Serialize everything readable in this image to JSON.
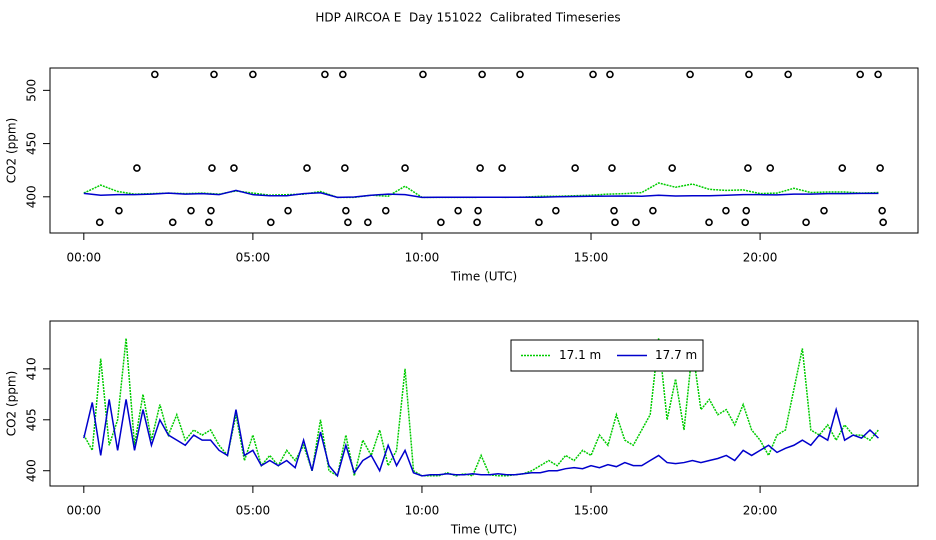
{
  "title": "HDP AIRCOA E  Day 151022  Calibrated Timeseries",
  "chart_data": [
    {
      "type": "line",
      "xlabel": "Time (UTC)",
      "ylabel": "CO2 (ppm)",
      "xlim": [
        -1,
        24.67
      ],
      "ylim": [
        366,
        521
      ],
      "xticks": [
        {
          "value": 0,
          "label": "00:00"
        },
        {
          "value": 5,
          "label": "05:00"
        },
        {
          "value": 10,
          "label": "10:00"
        },
        {
          "value": 15,
          "label": "15:00"
        },
        {
          "value": 20,
          "label": "20:00"
        }
      ],
      "yticks": [
        400,
        450,
        500
      ],
      "x": [
        0,
        0.5,
        1,
        1.5,
        2,
        2.5,
        3,
        3.5,
        4,
        4.5,
        5,
        5.5,
        6,
        6.5,
        7,
        7.5,
        8,
        8.5,
        9,
        9.5,
        10,
        10.5,
        11,
        11.5,
        12,
        12.5,
        13,
        13.5,
        14,
        14.5,
        15,
        15.5,
        16,
        16.5,
        17,
        17.5,
        18,
        18.5,
        19,
        19.5,
        20,
        20.5,
        21,
        21.5,
        22,
        22.5,
        23,
        23.5
      ],
      "series": [
        {
          "color": "#00cc00",
          "dash": true,
          "values": [
            403.5,
            411.0,
            405.0,
            402.5,
            403.0,
            403.5,
            403.0,
            403.5,
            402.5,
            405.5,
            403.5,
            401.5,
            402.0,
            402.5,
            405.0,
            399.5,
            399.5,
            401.5,
            400.5,
            410.0,
            399.5,
            399.5,
            399.5,
            399.5,
            399.6,
            399.5,
            399.7,
            400.5,
            400.5,
            401.0,
            401.5,
            402.5,
            403.0,
            404.0,
            413.0,
            409.0,
            412.0,
            407.0,
            406.0,
            406.5,
            403.0,
            403.5,
            408.0,
            404.0,
            404.5,
            404.5,
            403.5,
            404.0
          ]
        },
        {
          "color": "#0000cc",
          "values": [
            403.2,
            401.5,
            402.0,
            402.0,
            402.5,
            403.5,
            402.5,
            403.0,
            402.0,
            406.0,
            402.0,
            401.0,
            401.0,
            403.0,
            403.8,
            399.5,
            399.8,
            401.5,
            402.5,
            402.0,
            399.5,
            399.6,
            399.6,
            399.6,
            399.6,
            399.6,
            399.6,
            399.6,
            400.0,
            400.3,
            400.5,
            400.6,
            400.8,
            400.5,
            401.5,
            400.7,
            401.0,
            401.0,
            401.5,
            402.0,
            402.0,
            401.8,
            402.5,
            402.5,
            403.0,
            403.0,
            403.2,
            403.2
          ]
        },
        {
          "color": "#000000",
          "points": true,
          "x": [
            2.1,
            3.85,
            5.0,
            7.13,
            7.66,
            10.03,
            11.78,
            12.9,
            15.06,
            15.56,
            17.93,
            19.67,
            20.83,
            22.96,
            23.49,
            1.57,
            3.79,
            4.44,
            6.6,
            7.72,
            9.5,
            11.72,
            12.37,
            14.53,
            15.62,
            17.4,
            19.64,
            20.3,
            22.43,
            23.55,
            1.04,
            3.17,
            3.76,
            6.04,
            7.75,
            8.93,
            11.07,
            11.66,
            13.96,
            15.68,
            16.83,
            18.99,
            19.59,
            21.89,
            23.61,
            0.47,
            2.63,
            3.7,
            5.53,
            7.81,
            8.4,
            10.56,
            11.63,
            13.46,
            15.71,
            16.33,
            18.49,
            19.56,
            21.36,
            23.64
          ],
          "values": [
            515,
            515,
            515,
            515,
            515,
            515,
            515,
            515,
            515,
            515,
            515,
            515,
            515,
            515,
            515,
            427,
            427,
            427,
            427,
            427,
            427,
            427,
            427,
            427,
            427,
            427,
            427,
            427,
            427,
            427,
            387,
            387,
            387,
            387,
            387,
            387,
            387,
            387,
            387,
            387,
            387,
            387,
            387,
            387,
            387,
            376,
            376,
            376,
            376,
            376,
            376,
            376,
            376,
            376,
            376,
            376,
            376,
            376,
            376,
            376
          ]
        }
      ]
    },
    {
      "type": "line",
      "xlabel": "Time (UTC)",
      "ylabel": "CO2 (ppm)",
      "legend": "top",
      "xlim": [
        -1,
        24.67
      ],
      "ylim": [
        398.5,
        414.7
      ],
      "xticks": [
        {
          "value": 0,
          "label": "00:00"
        },
        {
          "value": 5,
          "label": "05:00"
        },
        {
          "value": 10,
          "label": "10:00"
        },
        {
          "value": 15,
          "label": "15:00"
        },
        {
          "value": 20,
          "label": "20:00"
        }
      ],
      "yticks": [
        400,
        405,
        410
      ],
      "x": [
        0,
        0.25,
        0.5,
        0.75,
        1,
        1.25,
        1.5,
        1.75,
        2,
        2.25,
        2.5,
        2.75,
        3,
        3.25,
        3.5,
        3.75,
        4,
        4.25,
        4.5,
        4.75,
        5,
        5.25,
        5.5,
        5.75,
        6,
        6.25,
        6.5,
        6.75,
        7,
        7.25,
        7.5,
        7.75,
        8,
        8.25,
        8.5,
        8.75,
        9,
        9.25,
        9.5,
        9.75,
        10,
        10.25,
        10.5,
        10.75,
        11,
        11.25,
        11.5,
        11.75,
        12,
        12.25,
        12.5,
        12.75,
        13,
        13.25,
        13.5,
        13.75,
        14,
        14.25,
        14.5,
        14.75,
        15,
        15.25,
        15.5,
        15.75,
        16,
        16.25,
        16.5,
        16.75,
        17,
        17.25,
        17.5,
        17.75,
        18,
        18.25,
        18.5,
        18.75,
        19,
        19.25,
        19.5,
        19.75,
        20,
        20.25,
        20.5,
        20.75,
        21,
        21.25,
        21.5,
        21.75,
        22,
        22.25,
        22.5,
        22.75,
        23,
        23.25,
        23.5
      ],
      "series": [
        {
          "name": "17.1 m",
          "color": "#00cc00",
          "dash": true,
          "values": [
            403.5,
            402.0,
            411.0,
            402.5,
            405.0,
            413.0,
            402.5,
            407.5,
            403.0,
            406.5,
            403.5,
            405.5,
            403.0,
            404.0,
            403.5,
            404.0,
            402.5,
            401.5,
            405.5,
            401.0,
            403.5,
            400.5,
            401.5,
            400.5,
            402.0,
            401.0,
            402.5,
            400.0,
            405.0,
            400.0,
            399.5,
            403.5,
            399.5,
            403.0,
            401.5,
            404.0,
            400.5,
            402.0,
            410.0,
            400.0,
            399.5,
            399.5,
            399.5,
            399.8,
            399.5,
            399.7,
            399.5,
            401.5,
            399.6,
            399.5,
            399.5,
            399.6,
            399.7,
            400.0,
            400.5,
            401.0,
            400.5,
            401.5,
            401.0,
            402.0,
            401.5,
            403.5,
            402.5,
            405.5,
            403.0,
            402.5,
            404.0,
            405.5,
            413.0,
            405.0,
            409.0,
            404.0,
            412.0,
            406.0,
            407.0,
            405.5,
            406.0,
            404.5,
            406.5,
            404.0,
            403.0,
            401.5,
            403.5,
            404.0,
            408.0,
            412.0,
            404.0,
            403.5,
            404.5,
            403.0,
            404.5,
            403.5,
            403.5,
            403.0,
            404.0
          ]
        },
        {
          "name": "17.7 m",
          "color": "#0000cc",
          "values": [
            403.2,
            406.7,
            401.5,
            407.0,
            402.0,
            407.0,
            402.0,
            406.0,
            402.5,
            405.0,
            403.5,
            403.0,
            402.5,
            403.5,
            403.0,
            403.0,
            402.0,
            401.5,
            406.0,
            401.5,
            402.0,
            400.5,
            401.0,
            400.5,
            401.0,
            400.3,
            403.0,
            400.0,
            403.8,
            400.5,
            399.5,
            402.5,
            399.8,
            401.0,
            401.5,
            400.0,
            402.5,
            400.5,
            402.0,
            399.8,
            399.5,
            399.6,
            399.6,
            399.7,
            399.6,
            399.6,
            399.7,
            399.6,
            399.6,
            399.7,
            399.6,
            399.6,
            399.7,
            399.8,
            399.8,
            400.0,
            400.0,
            400.2,
            400.3,
            400.2,
            400.5,
            400.3,
            400.6,
            400.4,
            400.8,
            400.5,
            400.5,
            401.0,
            401.5,
            400.8,
            400.7,
            400.8,
            401.0,
            400.8,
            401.0,
            401.2,
            401.5,
            401.0,
            402.0,
            401.5,
            402.0,
            402.5,
            401.8,
            402.2,
            402.5,
            403.0,
            402.5,
            403.5,
            403.0,
            406.0,
            403.0,
            403.5,
            403.2,
            404.0,
            403.2
          ]
        }
      ]
    }
  ]
}
